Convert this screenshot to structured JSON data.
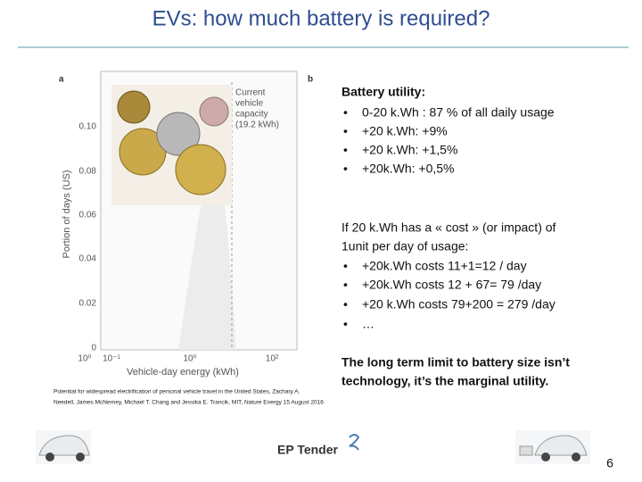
{
  "title": "EVs: how much battery is required?",
  "figure": {
    "panel_labels": [
      "a",
      "b"
    ],
    "y_label": "Portion of days (US)",
    "y_ticks": [
      "0.10",
      "0.08",
      "0.06",
      "0.04",
      "0.02",
      "0"
    ],
    "x_ticks": [
      "10⁰",
      "10⁻¹",
      "10⁰",
      "10²"
    ],
    "x_label": "Vehicle-day energy (kWh)",
    "annotation": [
      "Current",
      "vehicle",
      "capacity",
      "(19.2 kWh)"
    ],
    "citation": [
      "Potential for widespread electrification of personal vehicle travel in the United States, Zachary A.",
      "Needell, James McNerney, Michael T. Chang and Jessika E. Trancik, MIT, Nature Energy 15 August 2016"
    ]
  },
  "utility": {
    "heading": "Battery utility:",
    "bullets": [
      "0-20 k.Wh : 87 % of all daily usage",
      "+20 k.Wh:  +9%",
      "+20 k.Wh:  +1,5%",
      "+20k.Wh:   +0,5%"
    ]
  },
  "cost": {
    "intro": [
      "If 20 k.Wh has a « cost » (or impact) of",
      "1unit per day of usage:"
    ],
    "bullets": [
      "+20k.Wh costs 11+1=12 / day",
      "+20k.Wh costs 12 + 67= 79 /day",
      "+20 k.Wh costs 79+200 = 279 /day",
      "…"
    ]
  },
  "conclusion": [
    "The long term limit to battery size isn’t",
    "technology, it’s the marginal utility."
  ],
  "footer": {
    "brand": "EP Tender",
    "page": "6"
  }
}
